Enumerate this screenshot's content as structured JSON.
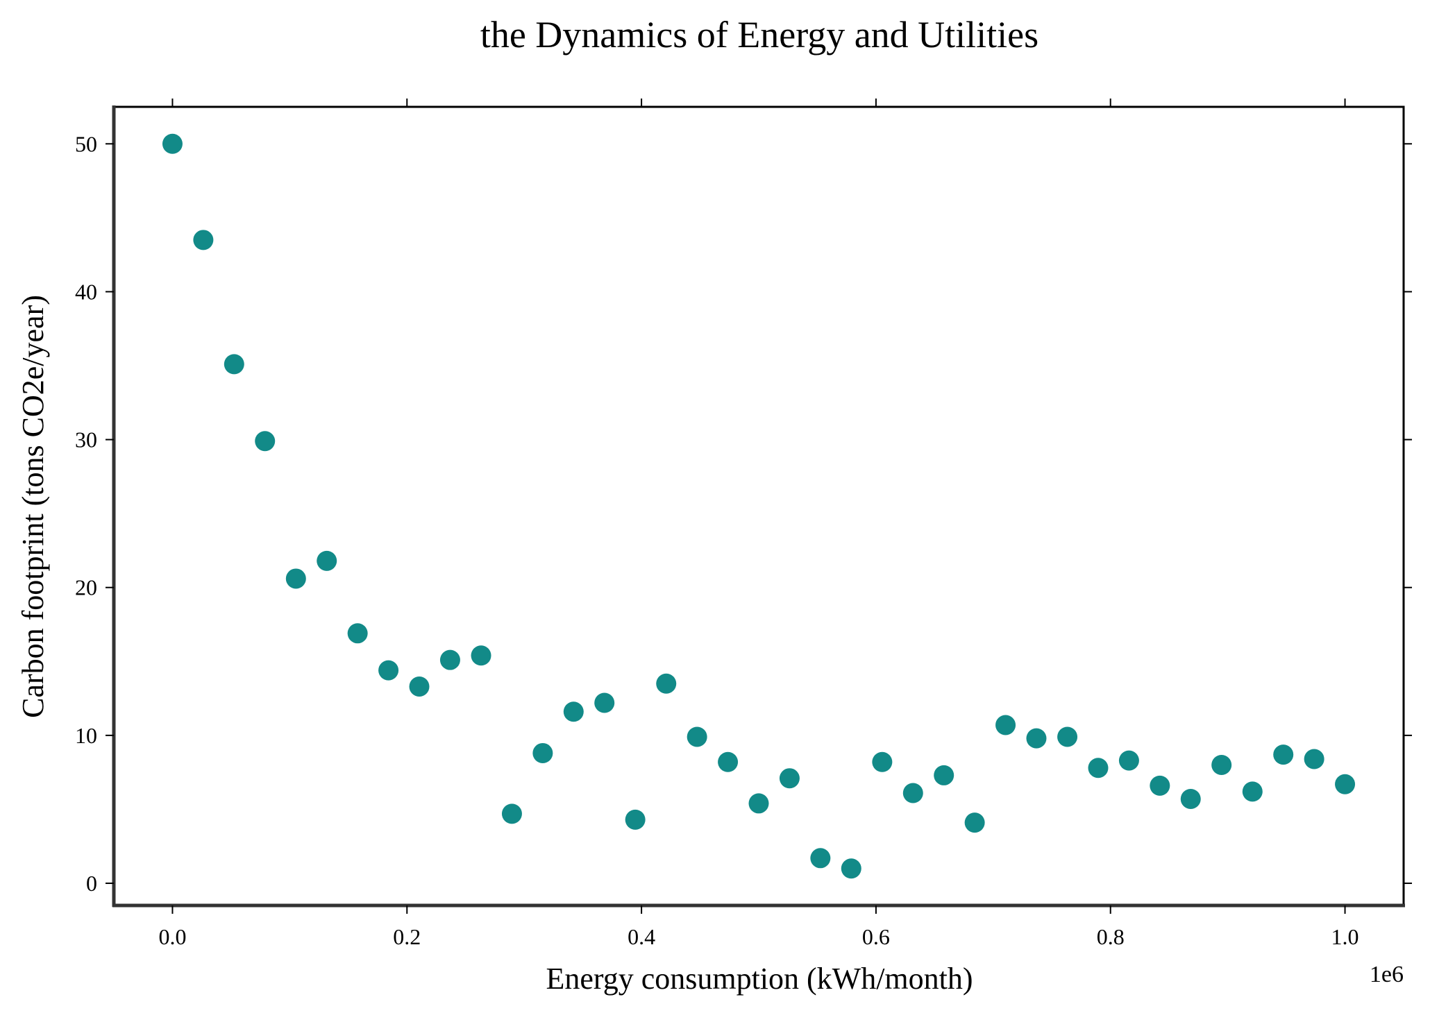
{
  "chart_data": {
    "type": "scatter",
    "title": "the Dynamics of Energy and Utilities",
    "xlabel": "Energy consumption (kWh/month)",
    "ylabel": "Carbon footprint (tons CO2e/year)",
    "x_offset_label": "1e6",
    "xlim": [
      -0.05,
      1.05
    ],
    "ylim": [
      -1.5,
      52.5
    ],
    "x_ticks": [
      0.0,
      0.2,
      0.4,
      0.6,
      0.8,
      1.0
    ],
    "x_tick_labels": [
      "0.0",
      "0.2",
      "0.4",
      "0.6",
      "0.8",
      "1.0"
    ],
    "y_ticks": [
      0,
      10,
      20,
      30,
      40,
      50
    ],
    "y_tick_labels": [
      "0",
      "10",
      "20",
      "30",
      "40",
      "50"
    ],
    "grid": false,
    "marker_color": "#128a88",
    "series": [
      {
        "points": [
          [
            0.0,
            50.0
          ],
          [
            0.0263,
            43.5
          ],
          [
            0.0526,
            35.1
          ],
          [
            0.0789,
            29.9
          ],
          [
            0.1053,
            20.6
          ],
          [
            0.1316,
            21.8
          ],
          [
            0.1579,
            16.9
          ],
          [
            0.1842,
            14.4
          ],
          [
            0.2105,
            13.3
          ],
          [
            0.2368,
            15.1
          ],
          [
            0.2632,
            15.4
          ],
          [
            0.2895,
            4.7
          ],
          [
            0.3158,
            8.8
          ],
          [
            0.3421,
            11.6
          ],
          [
            0.3684,
            12.2
          ],
          [
            0.3947,
            4.3
          ],
          [
            0.4211,
            13.5
          ],
          [
            0.4474,
            9.9
          ],
          [
            0.4737,
            8.2
          ],
          [
            0.5,
            5.4
          ],
          [
            0.5263,
            7.1
          ],
          [
            0.5526,
            1.7
          ],
          [
            0.5789,
            1.0
          ],
          [
            0.6053,
            8.2
          ],
          [
            0.6316,
            6.1
          ],
          [
            0.6579,
            7.3
          ],
          [
            0.6842,
            4.1
          ],
          [
            0.7105,
            10.7
          ],
          [
            0.7368,
            9.8
          ],
          [
            0.7632,
            9.9
          ],
          [
            0.7895,
            7.8
          ],
          [
            0.8158,
            8.3
          ],
          [
            0.8421,
            6.6
          ],
          [
            0.8684,
            5.7
          ],
          [
            0.8947,
            8.0
          ],
          [
            0.9211,
            6.2
          ],
          [
            0.9474,
            8.7
          ],
          [
            0.9737,
            8.4
          ],
          [
            1.0,
            6.7
          ]
        ]
      }
    ]
  }
}
